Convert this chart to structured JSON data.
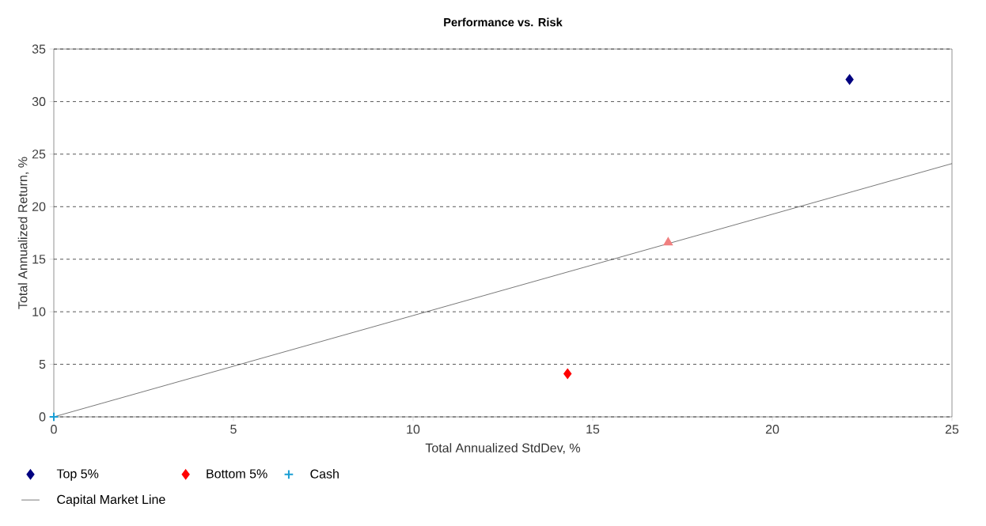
{
  "chart_data": {
    "type": "scatter",
    "title": "Performance vs. Risk",
    "xlabel": "Total Annualized StdDev, %",
    "ylabel": "Total Annualized Return, %",
    "xlim": [
      0,
      25
    ],
    "ylim": [
      0,
      35
    ],
    "xticks": [
      0,
      5,
      10,
      15,
      20,
      25
    ],
    "yticks": [
      0,
      5,
      10,
      15,
      20,
      25,
      30,
      35
    ],
    "grid": "y",
    "legend": "bottom",
    "series": [
      {
        "name": "Top 5%",
        "color": "#000080",
        "marker": "diamond",
        "x": [
          22.15
        ],
        "values": [
          32.1
        ]
      },
      {
        "name": "Bottom 5%",
        "color": "#ff0000",
        "marker": "diamond",
        "x": [
          14.3
        ],
        "values": [
          4.1
        ]
      },
      {
        "name": "Cash",
        "color": "#1a9ed4",
        "marker": "cross",
        "x": [
          0
        ],
        "values": [
          0
        ]
      },
      {
        "color": "#f08080",
        "marker": "triangle",
        "x": [
          17.1
        ],
        "values": [
          16.6
        ]
      },
      {
        "name": "Capital Market Line",
        "type": "line",
        "color": "#000000",
        "marker": "none",
        "x": [
          0,
          25
        ],
        "values": [
          0,
          24.1
        ]
      }
    ]
  }
}
